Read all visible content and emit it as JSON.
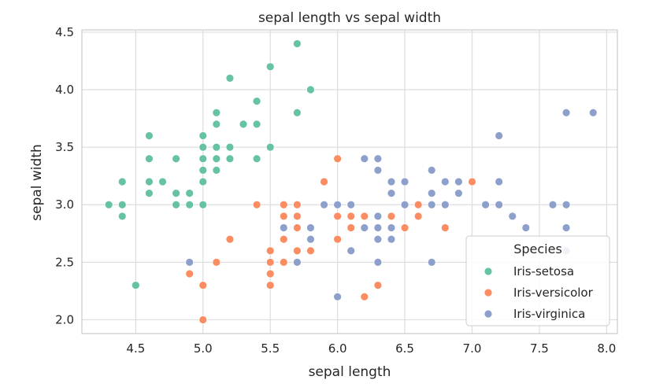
{
  "chart_data": {
    "type": "scatter",
    "title": "sepal length vs sepal width",
    "xlabel": "sepal length",
    "ylabel": "sepal width",
    "xlim": [
      4.1,
      8.08
    ],
    "ylim": [
      1.88,
      4.52
    ],
    "xticks": [
      "4.5",
      "5.0",
      "5.5",
      "6.0",
      "6.5",
      "7.0",
      "7.5",
      "8.0"
    ],
    "yticks": [
      "2.0",
      "2.5",
      "3.0",
      "3.5",
      "4.0",
      "4.5"
    ],
    "grid": true,
    "legend": {
      "title": "Species",
      "placement": "bottom-right"
    },
    "series": [
      {
        "name": "Iris-setosa",
        "color": "#66c2a5",
        "points": [
          [
            5.1,
            3.5
          ],
          [
            4.9,
            3.0
          ],
          [
            4.7,
            3.2
          ],
          [
            4.6,
            3.1
          ],
          [
            5.0,
            3.6
          ],
          [
            5.4,
            3.9
          ],
          [
            4.6,
            3.4
          ],
          [
            5.0,
            3.4
          ],
          [
            4.4,
            2.9
          ],
          [
            4.9,
            3.1
          ],
          [
            5.4,
            3.7
          ],
          [
            4.8,
            3.4
          ],
          [
            4.8,
            3.0
          ],
          [
            4.3,
            3.0
          ],
          [
            5.8,
            4.0
          ],
          [
            5.7,
            4.4
          ],
          [
            5.4,
            3.9
          ],
          [
            5.1,
            3.5
          ],
          [
            5.7,
            3.8
          ],
          [
            5.1,
            3.8
          ],
          [
            5.4,
            3.4
          ],
          [
            5.1,
            3.7
          ],
          [
            4.6,
            3.6
          ],
          [
            5.1,
            3.3
          ],
          [
            4.8,
            3.4
          ],
          [
            5.0,
            3.0
          ],
          [
            5.0,
            3.4
          ],
          [
            5.2,
            3.5
          ],
          [
            5.2,
            3.4
          ],
          [
            4.7,
            3.2
          ],
          [
            4.8,
            3.1
          ],
          [
            5.4,
            3.4
          ],
          [
            5.2,
            4.1
          ],
          [
            5.5,
            4.2
          ],
          [
            4.9,
            3.1
          ],
          [
            5.0,
            3.2
          ],
          [
            5.5,
            3.5
          ],
          [
            4.9,
            3.1
          ],
          [
            4.4,
            3.0
          ],
          [
            5.1,
            3.4
          ],
          [
            5.0,
            3.5
          ],
          [
            4.5,
            2.3
          ],
          [
            4.4,
            3.2
          ],
          [
            5.0,
            3.5
          ],
          [
            5.1,
            3.8
          ],
          [
            4.8,
            3.0
          ],
          [
            5.1,
            3.8
          ],
          [
            4.6,
            3.2
          ],
          [
            5.3,
            3.7
          ],
          [
            5.0,
            3.3
          ]
        ]
      },
      {
        "name": "Iris-versicolor",
        "color": "#fc8d62",
        "points": [
          [
            7.0,
            3.2
          ],
          [
            6.4,
            3.2
          ],
          [
            6.9,
            3.1
          ],
          [
            5.5,
            2.3
          ],
          [
            6.5,
            2.8
          ],
          [
            5.7,
            2.8
          ],
          [
            6.3,
            3.3
          ],
          [
            4.9,
            2.4
          ],
          [
            6.6,
            2.9
          ],
          [
            5.2,
            2.7
          ],
          [
            5.0,
            2.0
          ],
          [
            5.9,
            3.0
          ],
          [
            6.0,
            2.2
          ],
          [
            6.1,
            2.9
          ],
          [
            5.6,
            2.9
          ],
          [
            6.7,
            3.1
          ],
          [
            5.6,
            3.0
          ],
          [
            5.8,
            2.7
          ],
          [
            6.2,
            2.2
          ],
          [
            5.6,
            2.5
          ],
          [
            5.9,
            3.2
          ],
          [
            6.1,
            2.8
          ],
          [
            6.3,
            2.5
          ],
          [
            6.1,
            2.8
          ],
          [
            6.4,
            2.9
          ],
          [
            6.6,
            3.0
          ],
          [
            6.8,
            2.8
          ],
          [
            6.7,
            3.0
          ],
          [
            6.0,
            2.9
          ],
          [
            5.7,
            2.6
          ],
          [
            5.5,
            2.4
          ],
          [
            5.5,
            2.4
          ],
          [
            5.8,
            2.7
          ],
          [
            6.0,
            2.7
          ],
          [
            5.4,
            3.0
          ],
          [
            6.0,
            3.4
          ],
          [
            6.7,
            3.1
          ],
          [
            6.3,
            2.3
          ],
          [
            5.6,
            3.0
          ],
          [
            5.5,
            2.5
          ],
          [
            5.5,
            2.6
          ],
          [
            6.1,
            3.0
          ],
          [
            5.8,
            2.6
          ],
          [
            5.0,
            2.3
          ],
          [
            5.6,
            2.7
          ],
          [
            5.7,
            3.0
          ],
          [
            5.7,
            2.9
          ],
          [
            6.2,
            2.9
          ],
          [
            5.1,
            2.5
          ],
          [
            5.7,
            2.8
          ]
        ]
      },
      {
        "name": "Iris-virginica",
        "color": "#8da0cb",
        "points": [
          [
            6.3,
            3.3
          ],
          [
            5.8,
            2.7
          ],
          [
            7.1,
            3.0
          ],
          [
            6.3,
            2.9
          ],
          [
            6.5,
            3.0
          ],
          [
            7.6,
            3.0
          ],
          [
            4.9,
            2.5
          ],
          [
            7.3,
            2.9
          ],
          [
            6.7,
            2.5
          ],
          [
            7.2,
            3.6
          ],
          [
            6.5,
            3.2
          ],
          [
            6.4,
            2.7
          ],
          [
            6.8,
            3.0
          ],
          [
            5.7,
            2.5
          ],
          [
            5.8,
            2.8
          ],
          [
            6.4,
            3.2
          ],
          [
            6.5,
            3.0
          ],
          [
            7.7,
            3.8
          ],
          [
            7.7,
            2.6
          ],
          [
            6.0,
            2.2
          ],
          [
            6.9,
            3.2
          ],
          [
            5.6,
            2.8
          ],
          [
            7.7,
            2.8
          ],
          [
            6.3,
            2.7
          ],
          [
            6.7,
            3.3
          ],
          [
            7.2,
            3.2
          ],
          [
            6.2,
            2.8
          ],
          [
            6.1,
            3.0
          ],
          [
            6.4,
            2.8
          ],
          [
            7.2,
            3.0
          ],
          [
            7.4,
            2.8
          ],
          [
            7.9,
            3.8
          ],
          [
            6.4,
            2.8
          ],
          [
            6.3,
            2.8
          ],
          [
            6.1,
            2.6
          ],
          [
            7.7,
            3.0
          ],
          [
            6.3,
            3.4
          ],
          [
            6.4,
            3.1
          ],
          [
            6.0,
            3.0
          ],
          [
            6.9,
            3.1
          ],
          [
            6.7,
            3.1
          ],
          [
            6.9,
            3.1
          ],
          [
            5.8,
            2.7
          ],
          [
            6.8,
            3.2
          ],
          [
            6.7,
            3.3
          ],
          [
            6.7,
            3.0
          ],
          [
            6.3,
            2.5
          ],
          [
            6.5,
            3.0
          ],
          [
            6.2,
            3.4
          ],
          [
            5.9,
            3.0
          ]
        ]
      }
    ]
  }
}
